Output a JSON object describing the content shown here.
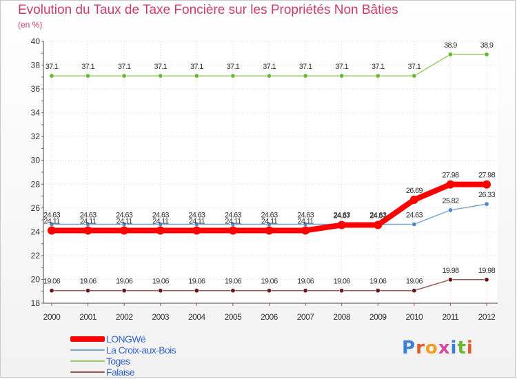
{
  "chart_data": {
    "type": "line",
    "title": "Evolution du Taux de Taxe Foncière sur les Propriétés Non Bâties",
    "ylabel": "(en %)",
    "xlabel": "",
    "x": [
      "2000",
      "2001",
      "2002",
      "2003",
      "2004",
      "2005",
      "2006",
      "2007",
      "2008",
      "2009",
      "2010",
      "2011",
      "2012"
    ],
    "ylim": [
      18,
      40
    ],
    "yticks": [
      18,
      20,
      22,
      24,
      26,
      28,
      30,
      32,
      34,
      36,
      38,
      40
    ],
    "series": [
      {
        "name": "Toges",
        "color": "#99cc66",
        "marker": "#66bb33",
        "values": [
          37.1,
          37.1,
          37.1,
          37.1,
          37.1,
          37.1,
          37.1,
          37.1,
          37.1,
          37.1,
          37.1,
          38.9,
          38.9
        ],
        "labels": [
          "37.1",
          "37.1",
          "37.1",
          "37.1",
          "37.1",
          "37.1",
          "37.1",
          "37.1",
          "37.1",
          "37.1",
          "37.1",
          "38.9",
          "38.9"
        ]
      },
      {
        "name": "La Croix-aux-Bois",
        "color": "#7aa6cc",
        "marker": "#4d88c4",
        "values": [
          24.63,
          24.63,
          24.63,
          24.63,
          24.63,
          24.63,
          24.63,
          24.63,
          24.63,
          24.63,
          24.63,
          25.82,
          26.33
        ],
        "labels": [
          "24.63",
          "24.63",
          "24.63",
          "24.63",
          "24.63",
          "24.63",
          "24.63",
          "24.63",
          "24.63",
          "24.63",
          "24.63",
          "25.82",
          "26.33"
        ]
      },
      {
        "name": "LONGWé",
        "color": "#ff0000",
        "marker": "#ff0000",
        "values": [
          24.11,
          24.11,
          24.11,
          24.11,
          24.11,
          24.11,
          24.11,
          24.11,
          24.57,
          24.57,
          26.69,
          27.98,
          27.98
        ],
        "labels": [
          "24.11",
          "24.11",
          "24.11",
          "24.11",
          "24.11",
          "24.11",
          "24.11",
          "24.11",
          "24.57",
          "24.57",
          "26.69",
          "27.98",
          "27.98"
        ]
      },
      {
        "name": "Falaise",
        "color": "#995555",
        "marker": "#661a1a",
        "values": [
          19.06,
          19.06,
          19.06,
          19.06,
          19.06,
          19.06,
          19.06,
          19.06,
          19.06,
          19.06,
          19.06,
          19.98,
          19.98
        ],
        "labels": [
          "19.06",
          "19.06",
          "19.06",
          "19.06",
          "19.06",
          "19.06",
          "19.06",
          "19.06",
          "19.06",
          "19.06",
          "19.06",
          "19.98",
          "19.98"
        ]
      }
    ],
    "legend": [
      "LONGWé",
      "La Croix-aux-Bois",
      "Toges",
      "Falaise"
    ],
    "legend_position": "bottom-left"
  },
  "logo": {
    "text": "Proxiti"
  }
}
